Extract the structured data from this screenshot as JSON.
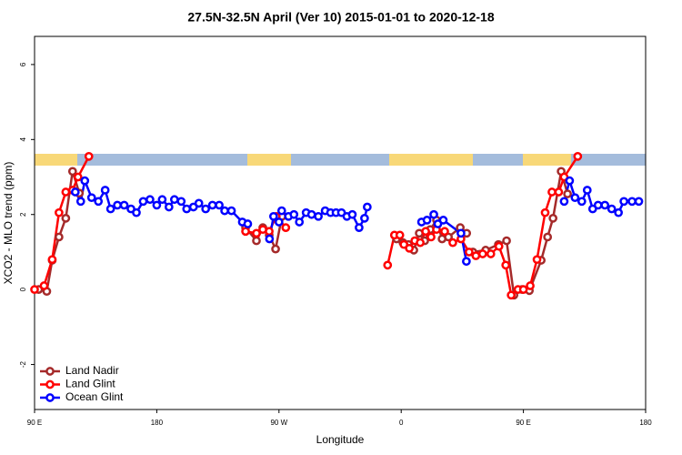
{
  "chart_data": {
    "type": "line",
    "title": "27.5N-32.5N April (Ver 10)   2015-01-01 to 2020-12-18",
    "x_label": "Longitude",
    "y_label": "XCO2 - MLO trend (ppm)",
    "xlim": [
      90,
      540
    ],
    "ylim": [
      -3.2,
      6.75
    ],
    "xticks": [
      {
        "value": 90,
        "label": "90 E"
      },
      {
        "value": 180,
        "label": "180"
      },
      {
        "value": 270,
        "label": "90 W"
      },
      {
        "value": 360,
        "label": "0"
      },
      {
        "value": 450,
        "label": "90 E"
      },
      {
        "value": 540,
        "label": "180"
      }
    ],
    "yticks": [
      -2,
      0,
      2,
      4,
      6
    ],
    "legend": "bottom-left",
    "series": [
      {
        "name": "Land Nadir",
        "color": "#a52a2a",
        "x": [
          93,
          99,
          103,
          108,
          113,
          118,
          123,
          null,
          245.4,
          253.4,
          258.1,
          262.8,
          267.5,
          272.2,
          null,
          356.6,
          361.3,
          365.3,
          369.3,
          373.3,
          377.3,
          381.4,
          386,
          390.1,
          394.8,
          403.5,
          408.2,
          null,
          412.8,
          422.2,
          431.6,
          437.6,
          443,
          449,
          454.4,
          463.1,
          467.8,
          471.8,
          477.8,
          482.5
        ],
        "values": [
          0,
          -0.05,
          0.78,
          1.4,
          1.9,
          3.15,
          2.57,
          null,
          1.65,
          1.3,
          1.65,
          1.45,
          1.08,
          1.95,
          null,
          1.35,
          1.25,
          1.2,
          1.05,
          1.5,
          1.3,
          1.6,
          1.85,
          1.35,
          1.4,
          1.65,
          1.5,
          null,
          1.0,
          1.05,
          1.2,
          1.3,
          -0.15,
          0,
          -0.03,
          0.78,
          1.4,
          1.9,
          3.15,
          2.55
        ]
      },
      {
        "name": "Land Glint",
        "color": "#ff0000",
        "x": [
          90,
          97,
          103,
          108,
          113,
          118,
          122,
          130,
          null,
          245.4,
          253.4,
          258.1,
          262.8,
          268,
          275,
          null,
          350,
          355,
          359,
          362,
          366,
          370,
          374,
          378,
          382,
          386,
          392,
          398,
          404,
          410,
          415,
          420,
          426,
          432,
          437,
          441,
          446,
          450,
          455,
          460,
          466,
          471,
          476,
          480,
          490
        ],
        "values": [
          0,
          0.1,
          0.8,
          2.05,
          2.6,
          2.65,
          3.0,
          3.55,
          null,
          1.55,
          1.5,
          1.6,
          1.55,
          1.95,
          1.65,
          null,
          0.65,
          1.45,
          1.45,
          1.2,
          1.1,
          1.3,
          1.25,
          1.55,
          1.4,
          1.6,
          1.55,
          1.25,
          1.35,
          1.0,
          0.9,
          0.95,
          0.95,
          1.15,
          0.65,
          -0.15,
          0,
          0,
          0.1,
          0.8,
          2.05,
          2.6,
          2.6,
          3.0,
          3.55
        ]
      },
      {
        "name": "Ocean Glint",
        "color": "#0000ff",
        "x": [
          120,
          124,
          127,
          132,
          137,
          142,
          146,
          151,
          156,
          161,
          165,
          170,
          175,
          180,
          184,
          189,
          193,
          198,
          202,
          207,
          211,
          216,
          221,
          226,
          230,
          235,
          243,
          247,
          null,
          263,
          266,
          270,
          272,
          277,
          281,
          285,
          290,
          294,
          299,
          304,
          308,
          312,
          316,
          320,
          324,
          329,
          333,
          335,
          null,
          375,
          379,
          384,
          387,
          391,
          404,
          408,
          null,
          480,
          484,
          488,
          493,
          497,
          501,
          505,
          510,
          515,
          520,
          524,
          530,
          535
        ],
        "values": [
          2.6,
          2.35,
          2.9,
          2.45,
          2.35,
          2.65,
          2.15,
          2.25,
          2.25,
          2.15,
          2.05,
          2.35,
          2.4,
          2.25,
          2.4,
          2.2,
          2.4,
          2.35,
          2.15,
          2.2,
          2.3,
          2.15,
          2.25,
          2.25,
          2.1,
          2.1,
          1.8,
          1.75,
          null,
          1.35,
          1.95,
          1.8,
          2.1,
          1.95,
          2.0,
          1.8,
          2.05,
          2.0,
          1.95,
          2.1,
          2.05,
          2.05,
          2.05,
          1.95,
          2.0,
          1.65,
          1.9,
          2.2,
          null,
          1.8,
          1.85,
          2.0,
          1.75,
          1.85,
          1.5,
          0.75,
          null,
          2.35,
          2.9,
          2.45,
          2.35,
          2.65,
          2.15,
          2.25,
          2.25,
          2.15,
          2.05,
          2.35,
          2.35,
          2.35
        ]
      }
    ]
  }
}
